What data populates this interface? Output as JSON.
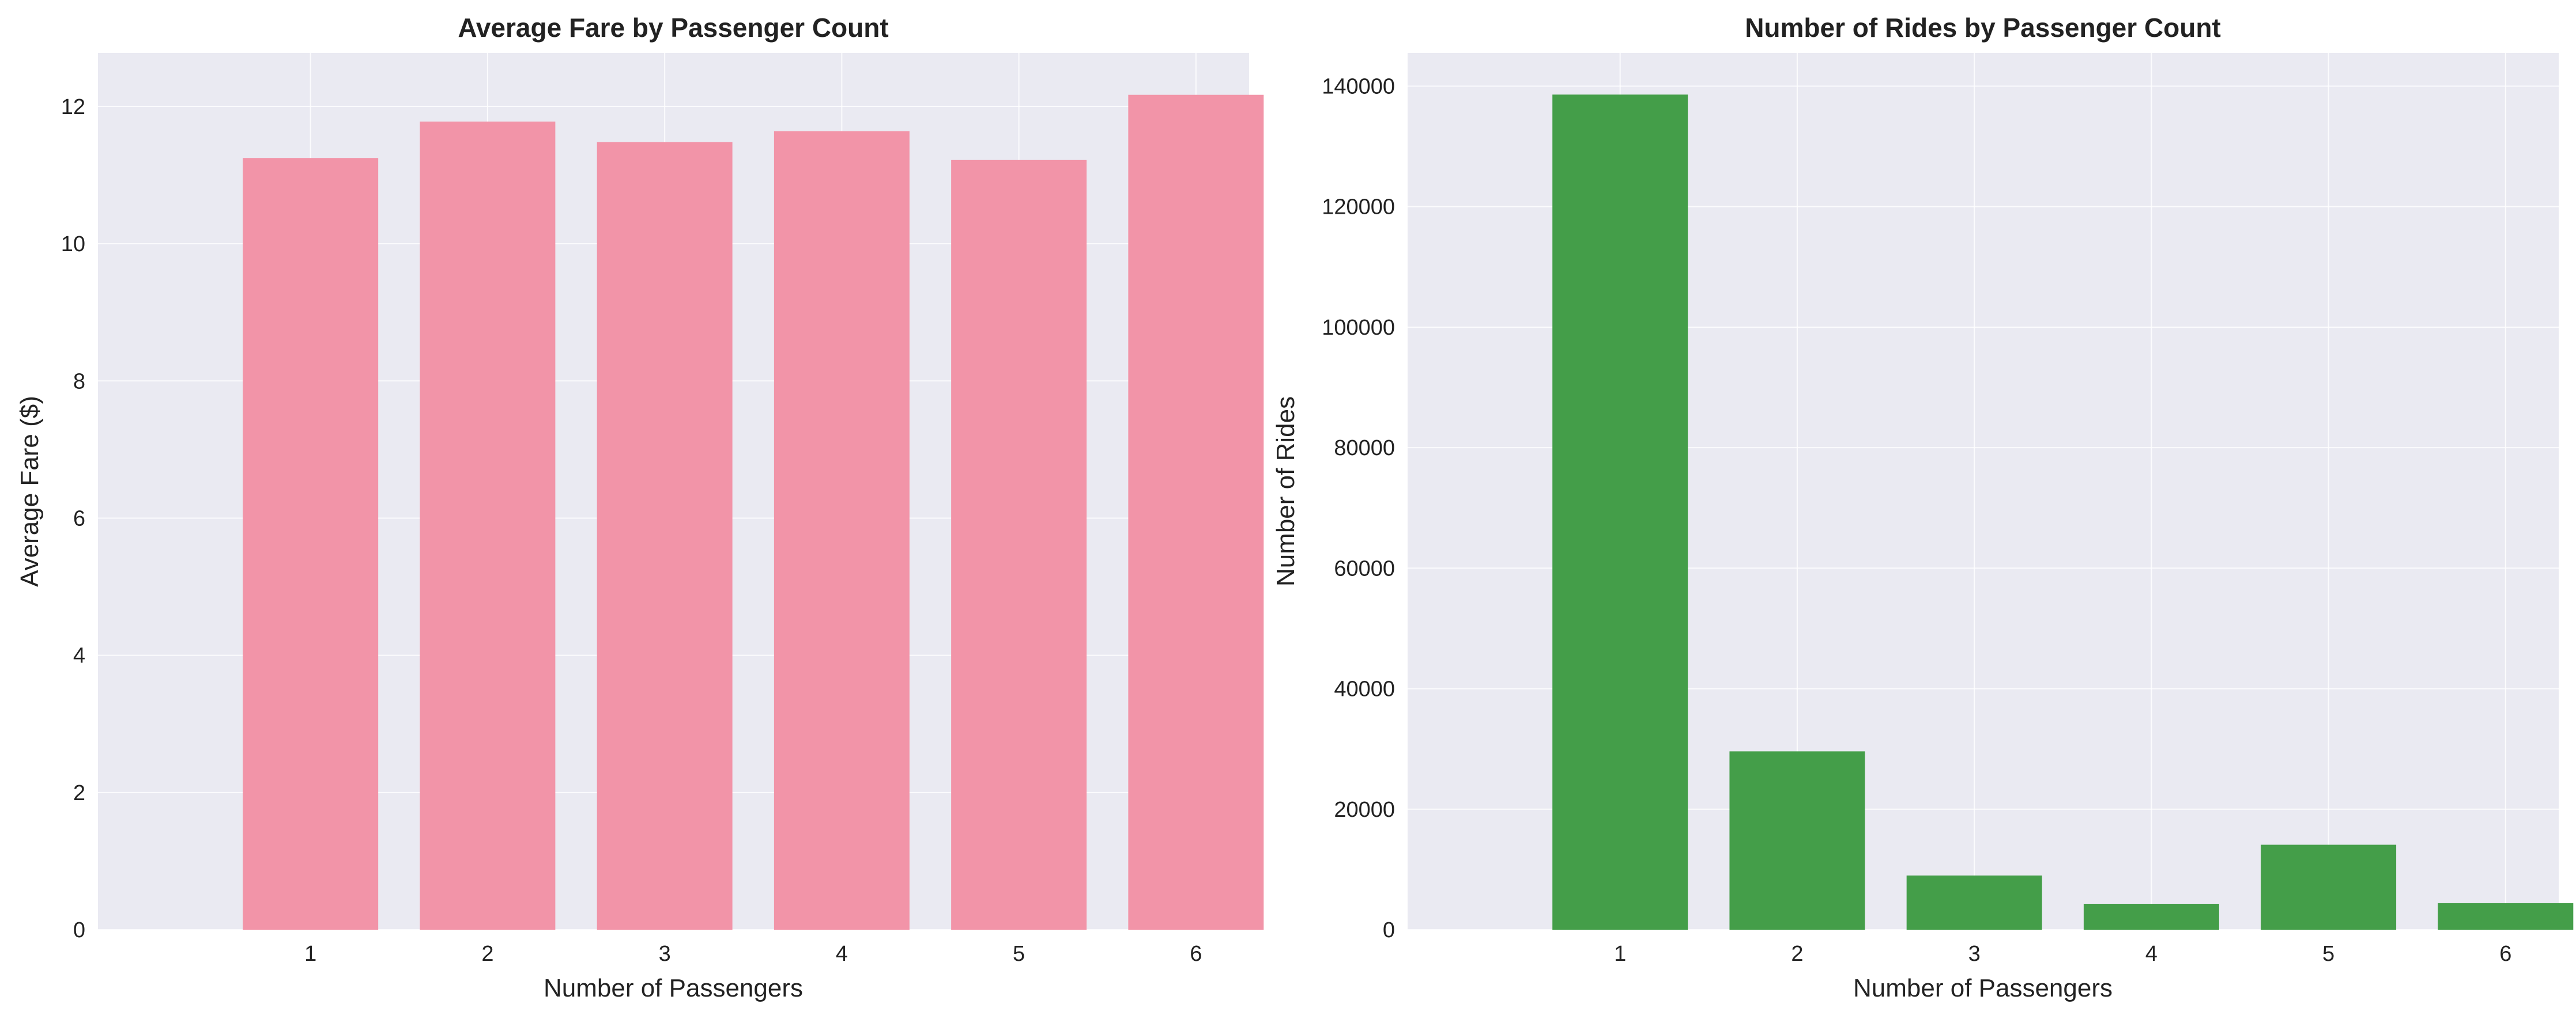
{
  "charts": [
    {
      "title": "Average Fare by Passenger Count",
      "xlabel": "Number of Passengers",
      "ylabel": "Average Fare ($)"
    },
    {
      "title": "Number of Rides by Passenger Count",
      "xlabel": "Number of Passengers",
      "ylabel": "Number of Rides"
    }
  ],
  "colors": {
    "plot_background": "#eaeaf2",
    "grid": "#ffffff",
    "fare_bar": "#f294a8",
    "rides_bar": "#449e49"
  },
  "chart_data": [
    {
      "type": "bar",
      "title": "Average Fare by Passenger Count",
      "xlabel": "Number of Passengers",
      "ylabel": "Average Fare ($)",
      "categories": [
        "1",
        "2",
        "3",
        "4",
        "5",
        "6"
      ],
      "values": [
        11.25,
        11.78,
        11.48,
        11.64,
        11.22,
        12.17
      ],
      "ylim": [
        0,
        12.78
      ],
      "yticks": [
        0,
        2,
        4,
        6,
        8,
        10,
        12
      ],
      "grid": true,
      "color": "#f294a8"
    },
    {
      "type": "bar",
      "title": "Number of Rides by Passenger Count",
      "xlabel": "Number of Passengers",
      "ylabel": "Number of Rides",
      "categories": [
        "1",
        "2",
        "3",
        "4",
        "5",
        "6"
      ],
      "values": [
        138600,
        29600,
        9000,
        4300,
        14100,
        4400
      ],
      "ylim": [
        0,
        145500
      ],
      "yticks": [
        0,
        20000,
        40000,
        60000,
        80000,
        100000,
        120000,
        140000
      ],
      "grid": true,
      "color": "#449e49"
    }
  ]
}
